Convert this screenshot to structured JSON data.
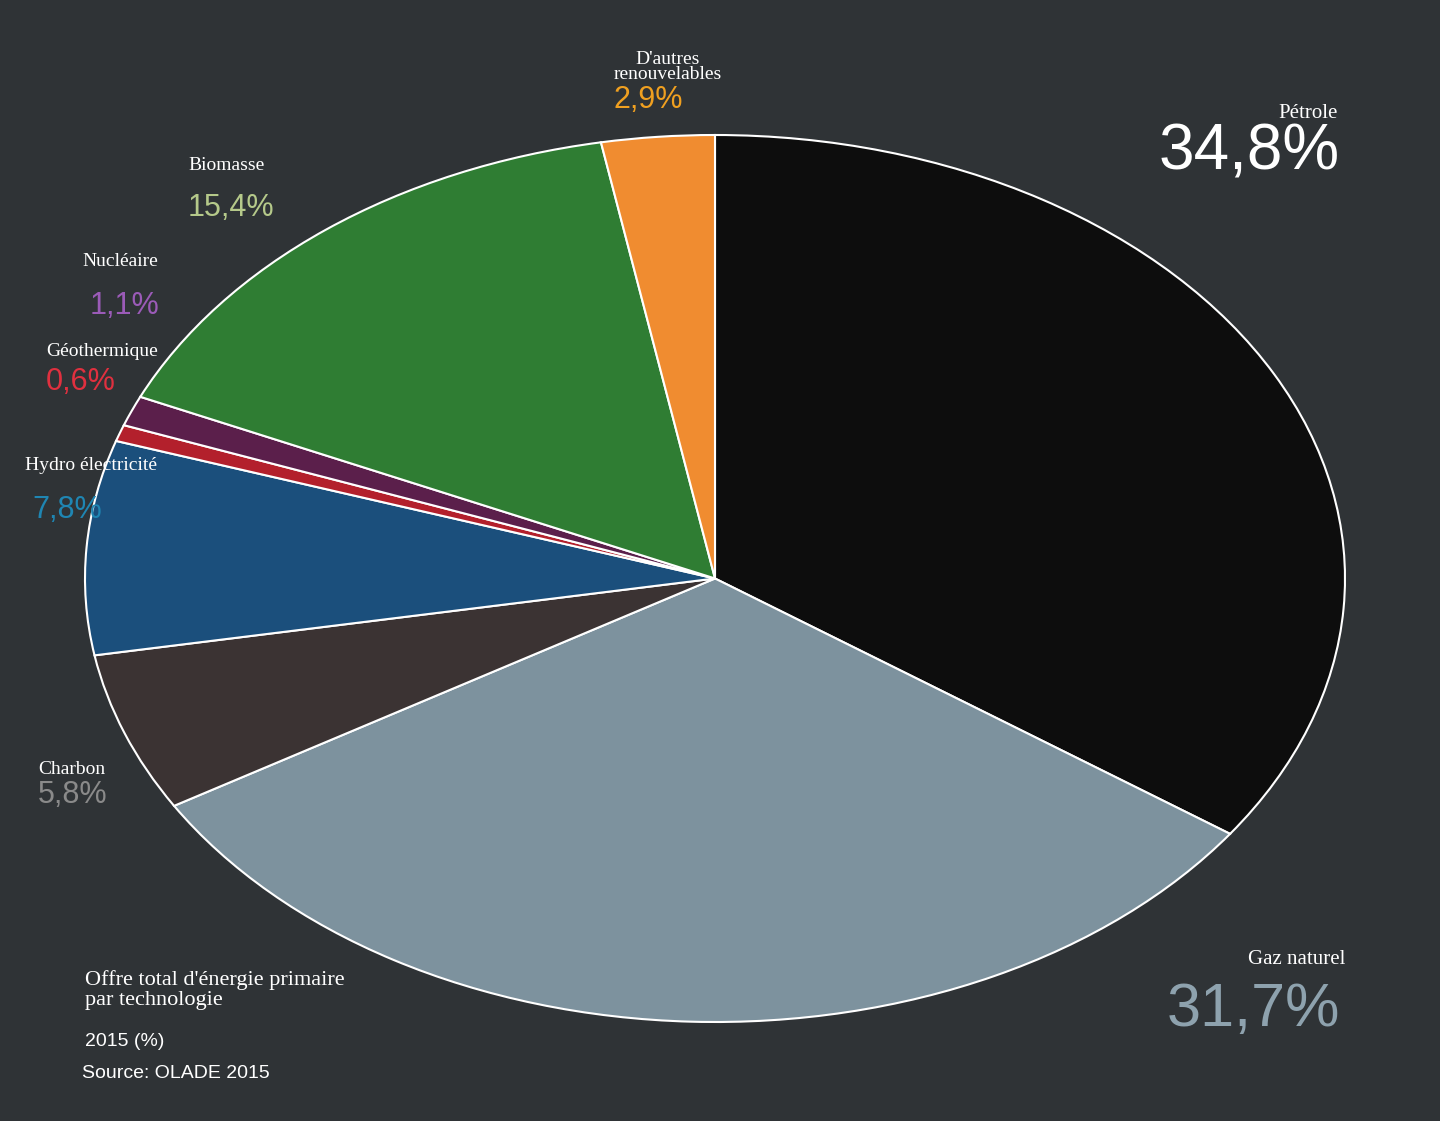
{
  "chart_data": {
    "type": "pie",
    "title": "Offre total d'énergie primaire par technologie",
    "subtitle": "2015 (%)",
    "annotations": [
      "Source: OLADE 2015"
    ],
    "categories": [
      "Pétrole",
      "Gaz naturel",
      "Charbon",
      "Hydro électricité",
      "Géothermique",
      "Nucléaire",
      "Biomasse",
      "D'autres renouvelables"
    ],
    "values": [
      34.8,
      31.7,
      5.8,
      7.8,
      0.6,
      1.1,
      15.4,
      2.9
    ],
    "value_labels": [
      "34,8%",
      "31,7%",
      "5,8%",
      "7,8%",
      "0,6%",
      "1,1%",
      "15,4%",
      "2,9%"
    ],
    "colors": [
      "#0d0d0d",
      "#7d929e",
      "#3b3333",
      "#1b4f7c",
      "#b3202c",
      "#5b1f4b",
      "#2f7d33",
      "#f08c30"
    ],
    "data_labels": true
  }
}
